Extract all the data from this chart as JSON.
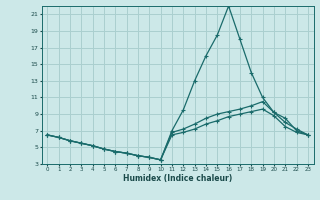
{
  "xlabel": "Humidex (Indice chaleur)",
  "xlim": [
    -0.5,
    23.5
  ],
  "ylim": [
    3,
    22
  ],
  "yticks": [
    3,
    5,
    7,
    9,
    11,
    13,
    15,
    17,
    19,
    21
  ],
  "xticks": [
    0,
    1,
    2,
    3,
    4,
    5,
    6,
    7,
    8,
    9,
    10,
    11,
    12,
    13,
    14,
    15,
    16,
    17,
    18,
    19,
    20,
    21,
    22,
    23
  ],
  "bg_color": "#cce8e8",
  "grid_color": "#aacfcf",
  "line_color": "#1a6b6b",
  "line1_x": [
    0,
    1,
    2,
    3,
    4,
    5,
    6,
    7,
    8,
    9,
    10,
    11,
    12,
    13,
    14,
    15,
    16,
    17,
    18,
    19,
    20,
    21,
    22,
    23
  ],
  "line1_y": [
    6.5,
    6.2,
    5.8,
    5.5,
    5.2,
    4.8,
    4.5,
    4.3,
    4.0,
    3.8,
    3.5,
    7.0,
    9.5,
    13.0,
    16.0,
    18.5,
    22.0,
    18.0,
    14.0,
    11.0,
    9.2,
    8.5,
    7.0,
    6.5
  ],
  "line2_x": [
    0,
    1,
    2,
    3,
    4,
    5,
    6,
    7,
    8,
    9,
    10,
    11,
    12,
    13,
    14,
    15,
    16,
    17,
    18,
    19,
    20,
    21,
    22,
    23
  ],
  "line2_y": [
    6.5,
    6.2,
    5.8,
    5.5,
    5.2,
    4.8,
    4.5,
    4.3,
    4.0,
    3.8,
    3.5,
    6.8,
    7.2,
    7.8,
    8.5,
    9.0,
    9.3,
    9.6,
    10.0,
    10.5,
    9.2,
    8.0,
    7.2,
    6.5
  ],
  "line3_x": [
    0,
    1,
    2,
    3,
    4,
    5,
    6,
    7,
    8,
    9,
    10,
    11,
    12,
    13,
    14,
    15,
    16,
    17,
    18,
    19,
    20,
    21,
    22,
    23
  ],
  "line3_y": [
    6.5,
    6.2,
    5.8,
    5.5,
    5.2,
    4.8,
    4.5,
    4.3,
    4.0,
    3.8,
    3.5,
    6.5,
    6.8,
    7.2,
    7.8,
    8.2,
    8.7,
    9.0,
    9.3,
    9.6,
    8.8,
    7.5,
    6.8,
    6.5
  ]
}
